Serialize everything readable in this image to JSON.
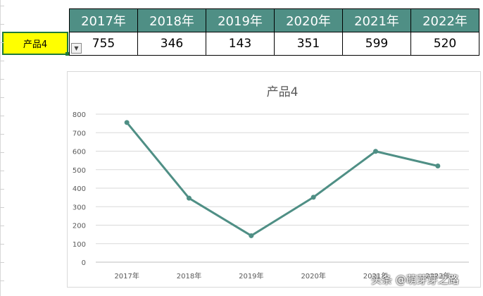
{
  "table": {
    "years": [
      "2017年",
      "2018年",
      "2019年",
      "2020年",
      "2021年",
      "2022年"
    ],
    "values": [
      "755",
      "346",
      "143",
      "351",
      "599",
      "520"
    ]
  },
  "selector": {
    "value": "产品4",
    "dropdown_icon": "dropdown-arrow-icon"
  },
  "chart_data": {
    "type": "line",
    "title": "产品4",
    "categories": [
      "2017年",
      "2018年",
      "2019年",
      "2020年",
      "2021年",
      "2022年"
    ],
    "values": [
      755,
      346,
      143,
      351,
      599,
      520
    ],
    "ylim": [
      0,
      800
    ],
    "yticks": [
      0,
      100,
      200,
      300,
      400,
      500,
      600,
      700,
      800
    ],
    "grid": true,
    "legend": "none",
    "line_color": "#4f8f85"
  },
  "colors": {
    "header_bg": "#4f8f85",
    "selector_bg": "#ffff00",
    "selection_border": "#1f7a3a"
  },
  "watermark": "头条 @萌芽芽之路"
}
